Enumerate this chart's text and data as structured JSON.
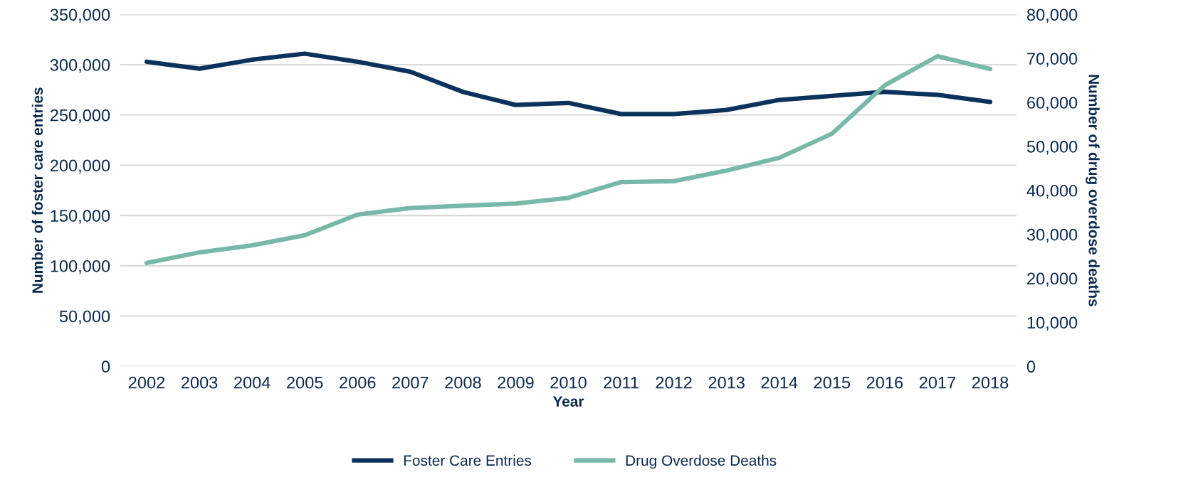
{
  "chart_data": {
    "type": "line",
    "xlabel": "Year",
    "ylabel": "Number of foster care entries",
    "y2label": "Number of drug overdose deaths",
    "categories": [
      "2002",
      "2003",
      "2004",
      "2005",
      "2006",
      "2007",
      "2008",
      "2009",
      "2010",
      "2011",
      "2012",
      "2013",
      "2014",
      "2015",
      "2016",
      "2017",
      "2018"
    ],
    "series": [
      {
        "name": "Foster Care Entries",
        "color": "#0b325c",
        "values": [
          303000,
          296000,
          305000,
          311000,
          303000,
          293000,
          273000,
          260000,
          262000,
          251000,
          251000,
          255000,
          265000,
          269000,
          273000,
          270000,
          263000
        ]
      },
      {
        "name": "Drug Overdose Deaths",
        "color": "#78b8a8",
        "axis": "y2",
        "values": [
          23500,
          25900,
          27500,
          29800,
          34500,
          36000,
          36500,
          37000,
          38300,
          41900,
          42100,
          44500,
          47400,
          52900,
          63900,
          70500,
          67600
        ]
      }
    ],
    "ylim": [
      0,
      350000
    ],
    "yticks": [
      {
        "value": 0,
        "label": "0"
      },
      {
        "value": 50000,
        "label": "50,000"
      },
      {
        "value": 100000,
        "label": "100,000"
      },
      {
        "value": 150000,
        "label": "150,000"
      },
      {
        "value": 200000,
        "label": "200,000"
      },
      {
        "value": 250000,
        "label": "250,000"
      },
      {
        "value": 300000,
        "label": "300,000"
      },
      {
        "value": 350000,
        "label": "350,000"
      }
    ],
    "y2lim": [
      0,
      80000
    ],
    "y2ticks": [
      {
        "value": 0,
        "label": "0"
      },
      {
        "value": 10000,
        "label": "10,000"
      },
      {
        "value": 20000,
        "label": "20,000"
      },
      {
        "value": 30000,
        "label": "30,000"
      },
      {
        "value": 40000,
        "label": "40,000"
      },
      {
        "value": 50000,
        "label": "50,000"
      },
      {
        "value": 60000,
        "label": "60,000"
      },
      {
        "value": 70000,
        "label": "70,000"
      },
      {
        "value": 80000,
        "label": "80,000"
      }
    ],
    "grid": "y",
    "legend": "bottom",
    "marker": "none",
    "line_style": "solid"
  }
}
